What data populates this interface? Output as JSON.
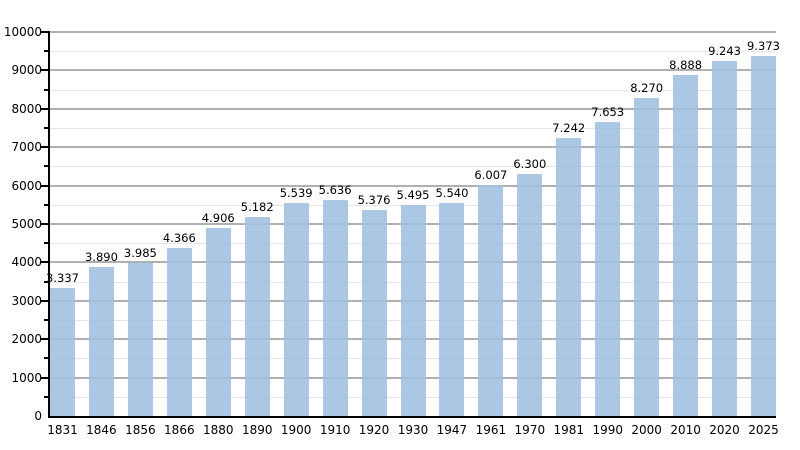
{
  "chart": {
    "name": "population-bar-chart",
    "title": ""
  },
  "chart_data": {
    "type": "bar",
    "title": "",
    "xlabel": "",
    "ylabel": "",
    "categories": [
      "1831",
      "1846",
      "1856",
      "1866",
      "1880",
      "1890",
      "1900",
      "1910",
      "1920",
      "1930",
      "1947",
      "1961",
      "1970",
      "1981",
      "1990",
      "2000",
      "2010",
      "2020",
      "2025"
    ],
    "values": [
      3337,
      3890,
      3985,
      4366,
      4906,
      5182,
      5539,
      5636,
      5376,
      5495,
      5540,
      6007,
      6300,
      7242,
      7653,
      8270,
      8888,
      9243,
      9373
    ],
    "value_labels": [
      "3.337",
      "3.890",
      "3.985",
      "4.366",
      "4.906",
      "5.182",
      "5.539",
      "5.636",
      "5.376",
      "5.495",
      "5.540",
      "6.007",
      "6.300",
      "7.242",
      "7.653",
      "8.270",
      "8.888",
      "9.243",
      "9.373"
    ],
    "ylim": [
      0,
      10000
    ],
    "y_major_step": 1000,
    "y_minor_step": 500,
    "y_tick_labels": [
      "0",
      "1000",
      "2000",
      "3000",
      "4000",
      "5000",
      "6000",
      "7000",
      "8000",
      "9000",
      "10000"
    ],
    "grid": true,
    "legend": false,
    "colors": {
      "bar": "#AFC8E3",
      "bar_rgba": "rgba(160,191,224,0.88)",
      "major_grid": "#b0b0b0",
      "minor_grid": "#e6e6e6",
      "axis": "#000000",
      "text": "#000000"
    }
  }
}
